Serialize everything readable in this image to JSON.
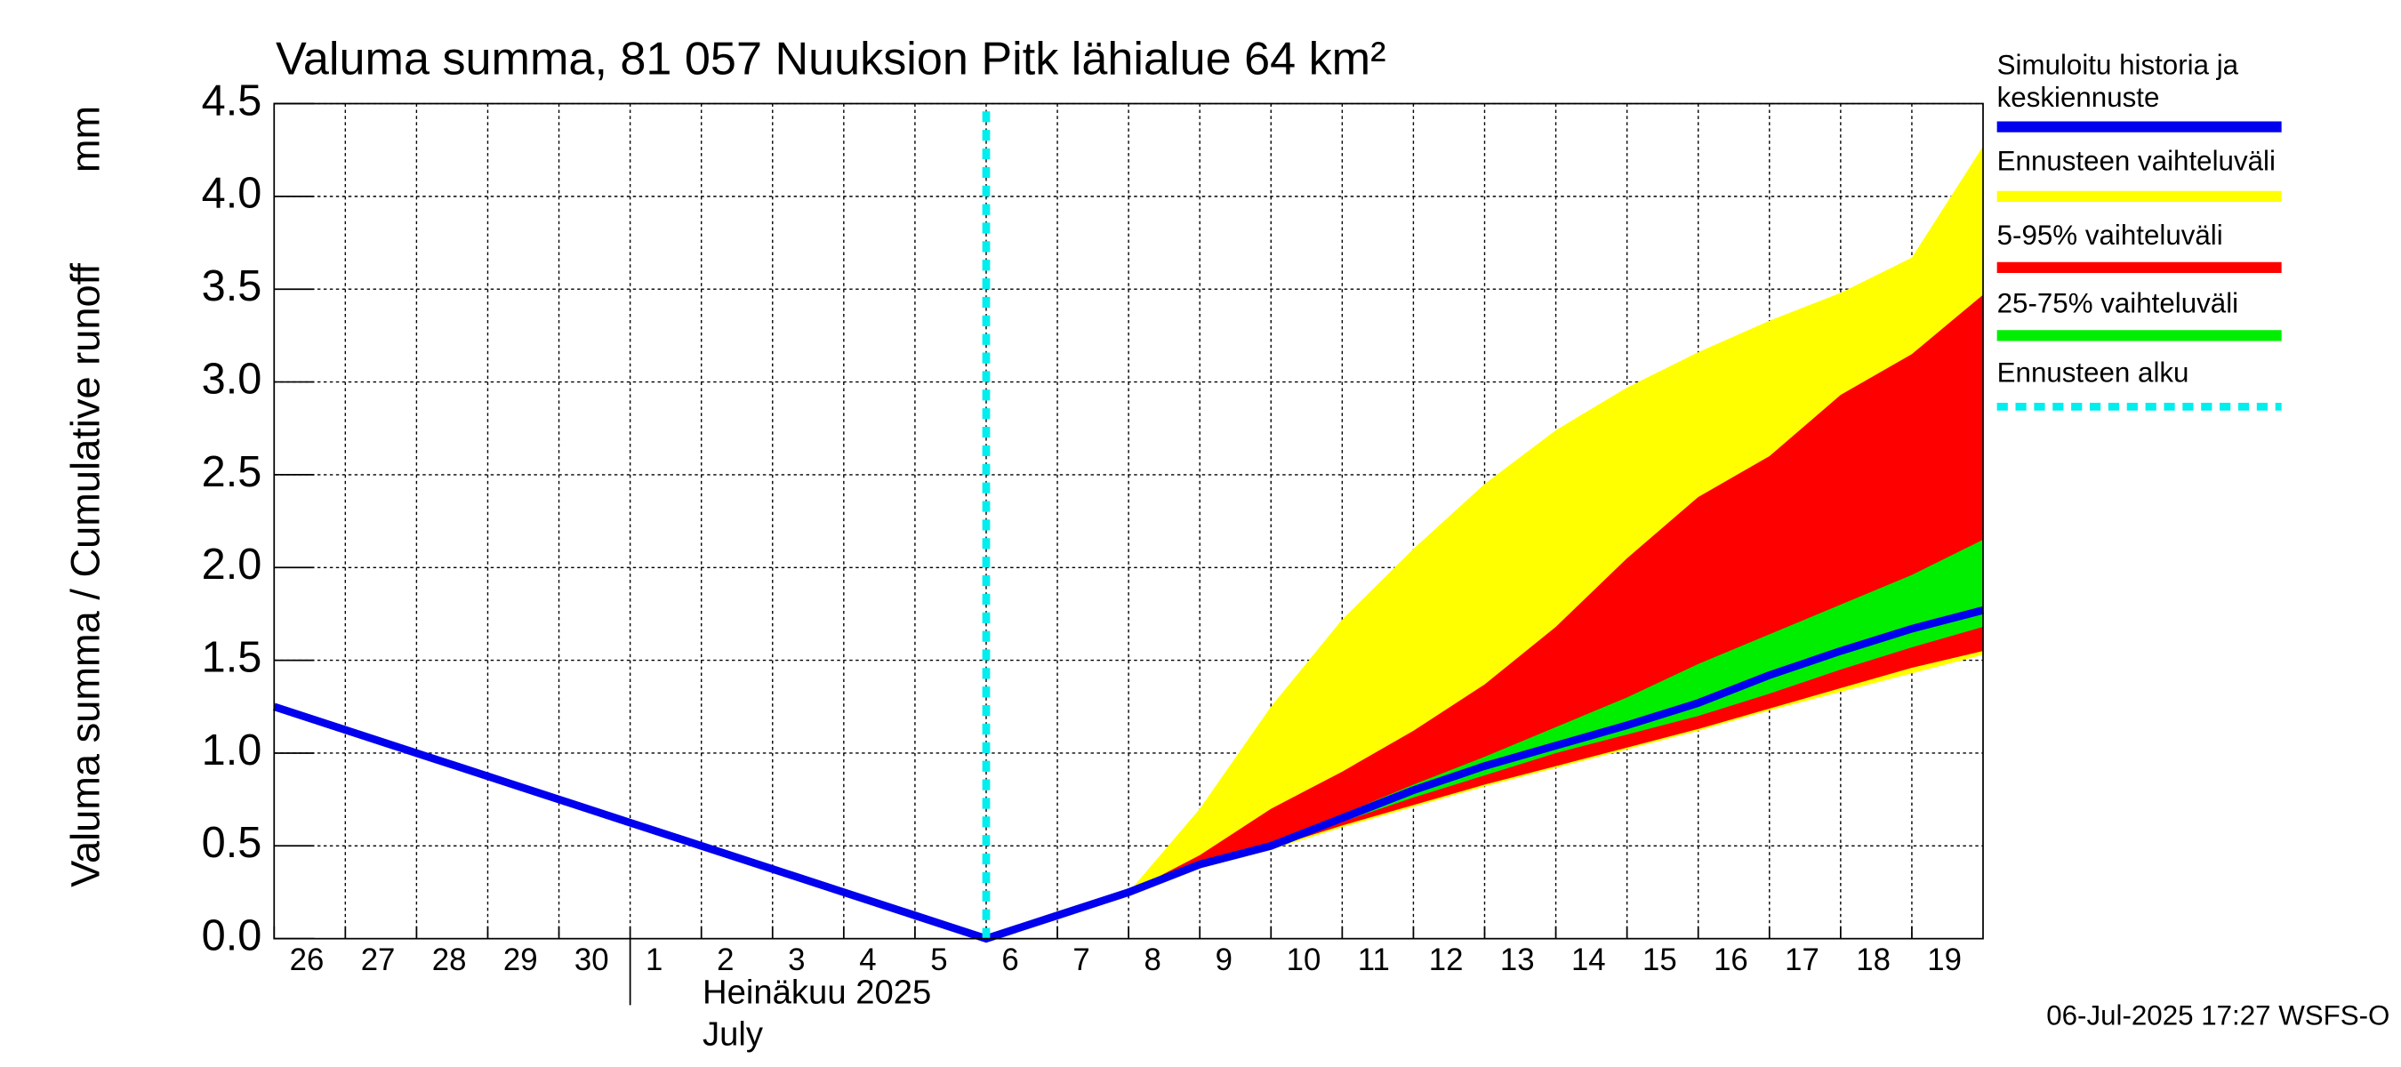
{
  "chart_data": {
    "type": "line",
    "title": "Valuma summa, 81 057 Nuuksion Pitk lähialue 64 km²",
    "ylabel": "Valuma summa / Cumulative runoff",
    "yunit": "mm",
    "categories": [
      "26",
      "27",
      "28",
      "29",
      "30",
      "1",
      "2",
      "3",
      "4",
      "5",
      "6",
      "7",
      "8",
      "9",
      "10",
      "11",
      "12",
      "13",
      "14",
      "15",
      "16",
      "17",
      "18",
      "19"
    ],
    "month_label": "Heinäkuu  2025",
    "month_label_en": "July",
    "xlim": [
      "2025-06-26",
      "2025-07-20"
    ],
    "ylim": [
      0,
      4.5
    ],
    "yticks": [
      {
        "value": 0,
        "label": "0.0"
      },
      {
        "value": 0.5,
        "label": "0.5"
      },
      {
        "value": 1,
        "label": "1.0"
      },
      {
        "value": 1.5,
        "label": "1.5"
      },
      {
        "value": 2,
        "label": "2.0"
      },
      {
        "value": 2.5,
        "label": "2.5"
      },
      {
        "value": 3,
        "label": "3.0"
      },
      {
        "value": 3.5,
        "label": "3.5"
      },
      {
        "value": 4,
        "label": "4.0"
      },
      {
        "value": 4.5,
        "label": "4.5"
      }
    ],
    "grid": true,
    "bands": [
      {
        "name": "Ennusteen vaihteluväli",
        "color": "#ffff00",
        "x": [
          "2025-07-08",
          "2025-07-09",
          "2025-07-10",
          "2025-07-11",
          "2025-07-12",
          "2025-07-13",
          "2025-07-14",
          "2025-07-15",
          "2025-07-16",
          "2025-07-17",
          "2025-07-18",
          "2025-07-19",
          "2025-07-20"
        ],
        "upper": [
          0.25,
          0.7,
          1.25,
          1.72,
          2.1,
          2.45,
          2.74,
          2.97,
          3.16,
          3.33,
          3.48,
          3.67,
          4.27
        ],
        "lower": [
          0.25,
          0.38,
          0.48,
          0.6,
          0.71,
          0.82,
          0.92,
          1.02,
          1.12,
          1.23,
          1.33,
          1.43,
          1.53
        ]
      },
      {
        "name": "5-95% vaihteluväli",
        "color": "#ff0000",
        "x": [
          "2025-07-08",
          "2025-07-09",
          "2025-07-10",
          "2025-07-11",
          "2025-07-12",
          "2025-07-13",
          "2025-07-14",
          "2025-07-15",
          "2025-07-16",
          "2025-07-17",
          "2025-07-18",
          "2025-07-19",
          "2025-07-20"
        ],
        "upper": [
          0.25,
          0.45,
          0.7,
          0.9,
          1.12,
          1.37,
          1.68,
          2.05,
          2.38,
          2.6,
          2.93,
          3.15,
          3.47
        ],
        "lower": [
          0.25,
          0.39,
          0.49,
          0.61,
          0.72,
          0.83,
          0.93,
          1.03,
          1.13,
          1.24,
          1.35,
          1.46,
          1.55
        ]
      },
      {
        "name": "25-75% vaihteluväli",
        "color": "#00ee00",
        "x": [
          "2025-07-08",
          "2025-07-09",
          "2025-07-10",
          "2025-07-11",
          "2025-07-12",
          "2025-07-13",
          "2025-07-14",
          "2025-07-15",
          "2025-07-16",
          "2025-07-17",
          "2025-07-18",
          "2025-07-19",
          "2025-07-20"
        ],
        "upper": [
          0.25,
          0.42,
          0.52,
          0.67,
          0.83,
          0.98,
          1.14,
          1.3,
          1.48,
          1.64,
          1.8,
          1.96,
          2.15
        ],
        "lower": [
          0.25,
          0.4,
          0.5,
          0.63,
          0.76,
          0.88,
          1.0,
          1.1,
          1.2,
          1.32,
          1.45,
          1.57,
          1.68
        ]
      }
    ],
    "series": [
      {
        "name": "Simuloitu historia ja keskiennuste",
        "color": "#0000ee",
        "x": [
          "2025-06-26",
          "2025-06-27",
          "2025-06-28",
          "2025-06-29",
          "2025-06-30",
          "2025-07-01",
          "2025-07-02",
          "2025-07-03",
          "2025-07-04",
          "2025-07-05",
          "2025-07-06",
          "2025-07-07",
          "2025-07-08",
          "2025-07-09",
          "2025-07-10",
          "2025-07-11",
          "2025-07-12",
          "2025-07-13",
          "2025-07-14",
          "2025-07-15",
          "2025-07-16",
          "2025-07-17",
          "2025-07-18",
          "2025-07-19",
          "2025-07-20"
        ],
        "values": [
          1.25,
          1.125,
          1.0,
          0.875,
          0.75,
          0.625,
          0.5,
          0.375,
          0.25,
          0.125,
          0,
          0.125,
          0.25,
          0.4,
          0.5,
          0.65,
          0.8,
          0.93,
          1.04,
          1.15,
          1.27,
          1.42,
          1.55,
          1.67,
          1.77
        ]
      }
    ],
    "forecast_start": {
      "name": "Ennusteen alku",
      "color": "#00eeee",
      "x": "2025-07-06"
    },
    "footer": "06-Jul-2025 17:27 WSFS-O"
  }
}
